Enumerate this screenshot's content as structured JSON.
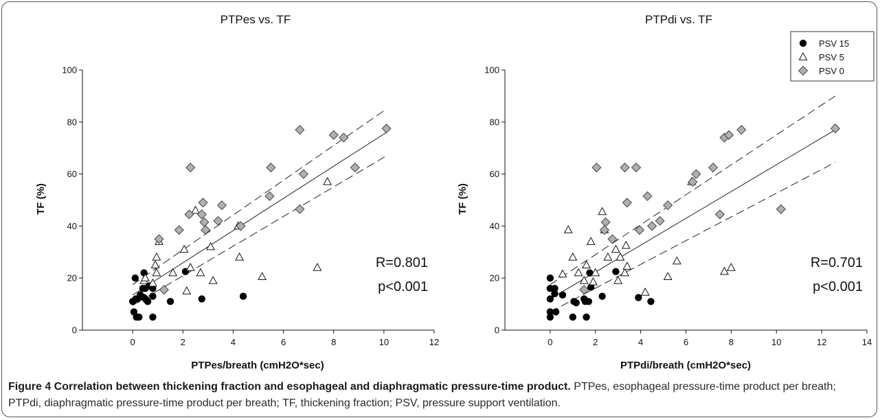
{
  "caption": {
    "title": "Figure 4 Correlation between thickening fraction and esophageal and diaphragmatic pressure-time product.",
    "text": "PTPes, esophageal pressure-time product per breath; PTPdi, diaphragmatic pressure-time product per breath; TF, thickening fraction; PSV, pressure support ventilation."
  },
  "legend": {
    "placement": "top-right",
    "items": [
      {
        "label": "PSV 15",
        "marker": "filled-circle",
        "color": "#000000"
      },
      {
        "label": "PSV 5",
        "marker": "open-triangle",
        "color": "#000000"
      },
      {
        "label": "PSV 0",
        "marker": "gray-diamond",
        "color": "#b0b0b0"
      }
    ]
  },
  "chart_data": [
    {
      "type": "scatter",
      "title": "PTPes vs. TF",
      "xlabel": "PTPes/breath (cmH2O*sec)",
      "ylabel": "TF (%)",
      "xlim": [
        -2,
        12
      ],
      "ylim": [
        0,
        100
      ],
      "xticks": [
        0,
        2,
        4,
        6,
        8,
        10,
        12
      ],
      "yticks": [
        0,
        20,
        40,
        60,
        80,
        100
      ],
      "stats": {
        "r": "R=0.801",
        "p": "p<0.001"
      },
      "regression": {
        "x": [
          0,
          10.1
        ],
        "fit": [
          13.5,
          76
        ],
        "ci_upper": [
          17.5,
          85
        ],
        "ci_lower": [
          9.5,
          67
        ]
      },
      "series": [
        {
          "name": "PSV 15",
          "marker": "circle",
          "points": [
            [
              0,
              11
            ],
            [
              0.05,
              7
            ],
            [
              0.1,
              20
            ],
            [
              0.12,
              12
            ],
            [
              0.15,
              5
            ],
            [
              0.2,
              12
            ],
            [
              0.25,
              5
            ],
            [
              0.3,
              13.5
            ],
            [
              0.35,
              13
            ],
            [
              0.4,
              16
            ],
            [
              0.45,
              22
            ],
            [
              0.45,
              12.5
            ],
            [
              0.5,
              16
            ],
            [
              0.55,
              11.5
            ],
            [
              0.6,
              11
            ],
            [
              0.65,
              17
            ],
            [
              0.8,
              16
            ],
            [
              0.8,
              13
            ],
            [
              0.8,
              5
            ],
            [
              1.5,
              11
            ],
            [
              2.1,
              22.5
            ],
            [
              2.75,
              12
            ],
            [
              4.4,
              13
            ]
          ]
        },
        {
          "name": "PSV 5",
          "marker": "triangle",
          "points": [
            [
              0.45,
              19
            ],
            [
              0.5,
              20
            ],
            [
              0.8,
              18
            ],
            [
              0.9,
              25
            ],
            [
              0.95,
              28
            ],
            [
              0.95,
              22
            ],
            [
              1.05,
              34
            ],
            [
              1.6,
              22
            ],
            [
              2.05,
              31
            ],
            [
              2.15,
              15
            ],
            [
              2.3,
              24
            ],
            [
              2.5,
              46
            ],
            [
              2.7,
              22
            ],
            [
              3.1,
              32
            ],
            [
              3.2,
              19
            ],
            [
              4.2,
              40
            ],
            [
              4.25,
              28
            ],
            [
              5.15,
              20.5
            ],
            [
              7.75,
              57
            ],
            [
              7.35,
              24
            ]
          ]
        },
        {
          "name": "PSV 0",
          "marker": "diamond",
          "points": [
            [
              1.05,
              35
            ],
            [
              1.25,
              15.5
            ],
            [
              1.85,
              38.5
            ],
            [
              2.25,
              44.5
            ],
            [
              2.3,
              62.5
            ],
            [
              2.75,
              44.5
            ],
            [
              2.8,
              49
            ],
            [
              2.85,
              41.5
            ],
            [
              2.9,
              38.5
            ],
            [
              3.4,
              42
            ],
            [
              3.55,
              48
            ],
            [
              4.3,
              40
            ],
            [
              5.45,
              51.5
            ],
            [
              5.5,
              62.5
            ],
            [
              6.65,
              77
            ],
            [
              6.65,
              46.5
            ],
            [
              6.8,
              60
            ],
            [
              8.0,
              75
            ],
            [
              8.4,
              74
            ],
            [
              8.85,
              62.5
            ],
            [
              10.1,
              77.5
            ]
          ]
        }
      ]
    },
    {
      "type": "scatter",
      "title": "PTPdi vs. TF",
      "xlabel": "PTPdi/breath (cmH2O*sec)",
      "ylabel": "TF (%)",
      "xlim": [
        -2,
        14
      ],
      "ylim": [
        0,
        100
      ],
      "xticks": [
        0,
        2,
        4,
        6,
        8,
        10,
        12,
        14
      ],
      "yticks": [
        0,
        20,
        40,
        60,
        80,
        100
      ],
      "stats": {
        "r": "R=0.701",
        "p": "p<0.001"
      },
      "regression": {
        "x": [
          0,
          12.6
        ],
        "fit": [
          12,
          77
        ],
        "ci_upper": [
          17.5,
          90
        ],
        "ci_lower": [
          7,
          64.5
        ]
      },
      "series": [
        {
          "name": "PSV 15",
          "marker": "circle",
          "points": [
            [
              0,
              20
            ],
            [
              0,
              16
            ],
            [
              0,
              12
            ],
            [
              0,
              7
            ],
            [
              0,
              5
            ],
            [
              0.2,
              16
            ],
            [
              0.2,
              14
            ],
            [
              0.25,
              7
            ],
            [
              0.55,
              13.5
            ],
            [
              1.0,
              5
            ],
            [
              1.05,
              11
            ],
            [
              1.15,
              10.5
            ],
            [
              1.5,
              12
            ],
            [
              1.55,
              11
            ],
            [
              1.6,
              5
            ],
            [
              1.7,
              11
            ],
            [
              1.75,
              22
            ],
            [
              1.8,
              16.5
            ],
            [
              2.3,
              13
            ],
            [
              2.9,
              22.5
            ],
            [
              3.9,
              12.5
            ],
            [
              4.45,
              11
            ]
          ]
        },
        {
          "name": "PSV 5",
          "marker": "triangle",
          "points": [
            [
              0.55,
              21.5
            ],
            [
              0.8,
              38.5
            ],
            [
              1.0,
              28
            ],
            [
              1.25,
              22
            ],
            [
              1.5,
              19
            ],
            [
              1.6,
              25
            ],
            [
              1.8,
              34
            ],
            [
              1.9,
              18.5
            ],
            [
              2.0,
              22
            ],
            [
              2.3,
              45.5
            ],
            [
              2.4,
              38.5
            ],
            [
              2.55,
              28
            ],
            [
              2.9,
              31
            ],
            [
              3.0,
              19
            ],
            [
              3.1,
              28
            ],
            [
              3.3,
              22
            ],
            [
              3.35,
              32.5
            ],
            [
              3.4,
              24.5
            ],
            [
              4.2,
              14.5
            ],
            [
              5.2,
              20.5
            ],
            [
              5.6,
              26.5
            ],
            [
              6.25,
              57
            ],
            [
              7.7,
              22.5
            ],
            [
              8.0,
              24
            ]
          ]
        },
        {
          "name": "PSV 0",
          "marker": "diamond",
          "points": [
            [
              1.5,
              15.5
            ],
            [
              2.05,
              62.5
            ],
            [
              2.4,
              38.5
            ],
            [
              2.45,
              41.5
            ],
            [
              2.75,
              35
            ],
            [
              3.3,
              62.5
            ],
            [
              3.4,
              49
            ],
            [
              3.8,
              62.5
            ],
            [
              3.95,
              38.5
            ],
            [
              4.3,
              51.5
            ],
            [
              4.5,
              40
            ],
            [
              4.85,
              42
            ],
            [
              5.2,
              48
            ],
            [
              6.3,
              57
            ],
            [
              6.45,
              60
            ],
            [
              7.2,
              62.5
            ],
            [
              7.5,
              44.5
            ],
            [
              7.7,
              74
            ],
            [
              7.9,
              75
            ],
            [
              8.45,
              77
            ],
            [
              10.2,
              46.5
            ],
            [
              12.6,
              77.5
            ]
          ]
        }
      ]
    }
  ]
}
